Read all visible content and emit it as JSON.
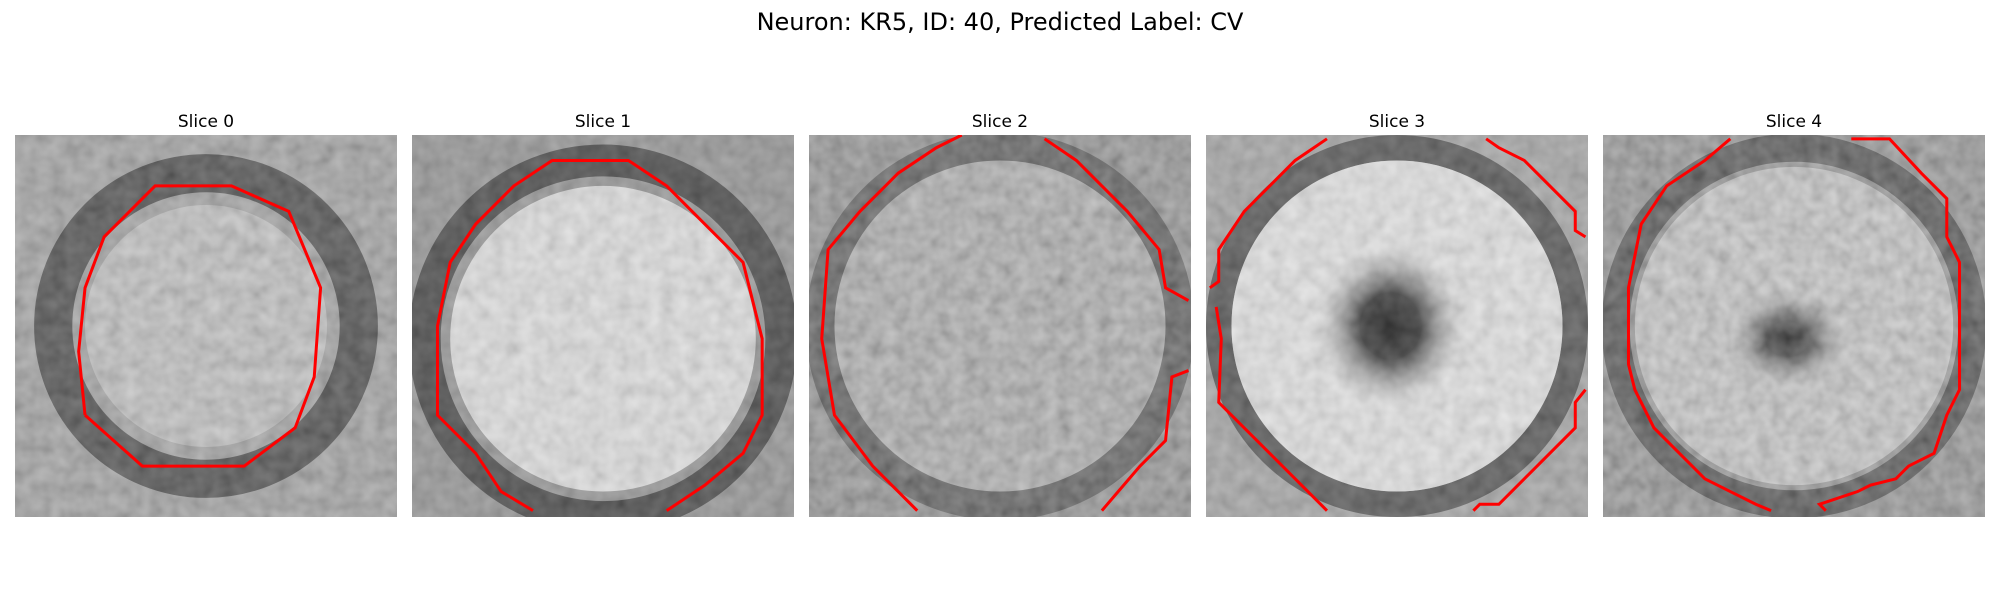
{
  "figure": {
    "title": "Neuron: KR5, ID: 40, Predicted Label: CV"
  },
  "panels": [
    {
      "label": "Slice 0",
      "image_description": "grayscale microscopy crop of a round cell with dark rim, red contour outline"
    },
    {
      "label": "Slice 1",
      "image_description": "grayscale microscopy crop of a bright round cell body with red contour outline"
    },
    {
      "label": "Slice 2",
      "image_description": "grayscale microscopy crop of a textured round cell with red contour segments"
    },
    {
      "label": "Slice 3",
      "image_description": "grayscale microscopy crop of a bright cell with dark central nucleus and red contour segments"
    },
    {
      "label": "Slice 4",
      "image_description": "grayscale microscopy crop of a cell with dark center spot and red contour outline"
    }
  ],
  "colors": {
    "contour": "#ff0000",
    "background": "#ffffff"
  }
}
